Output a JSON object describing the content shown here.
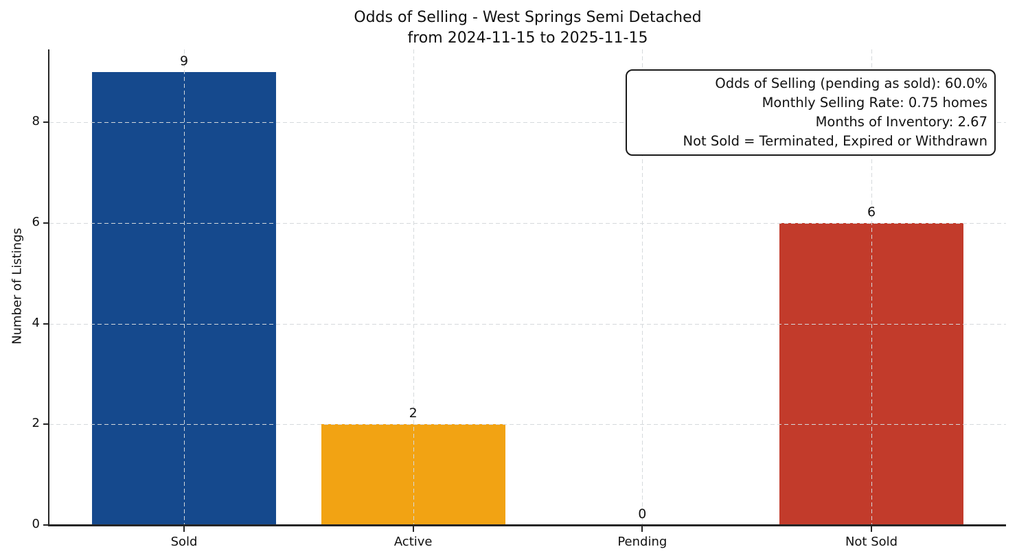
{
  "chart_data": {
    "type": "bar",
    "title": "Odds of Selling - West Springs Semi Detached\nfrom 2024-11-15 to 2025-11-15",
    "categories": [
      "Sold",
      "Active",
      "Pending",
      "Not Sold"
    ],
    "values": [
      9,
      2,
      0,
      6
    ],
    "value_labels": [
      "9",
      "2",
      "0",
      "6"
    ],
    "bar_colors": [
      "#15498d",
      "#f2a313",
      "#888888",
      "#c23b2b"
    ],
    "xlabel": "",
    "ylabel": "Number of Listings",
    "ylim": [
      0,
      9.45
    ],
    "yticks": [
      0,
      2,
      4,
      6,
      8
    ],
    "grid": {
      "style": "dashed",
      "axes": "both",
      "color": "#d5d9dc",
      "drawn_over_bars": true
    },
    "legend": "none",
    "annotations": [
      "Odds of Selling (pending as sold): 60.0%",
      "Monthly Selling Rate: 0.75 homes",
      "Months of Inventory: 2.67",
      "Not Sold = Terminated, Expired or Withdrawn"
    ]
  }
}
